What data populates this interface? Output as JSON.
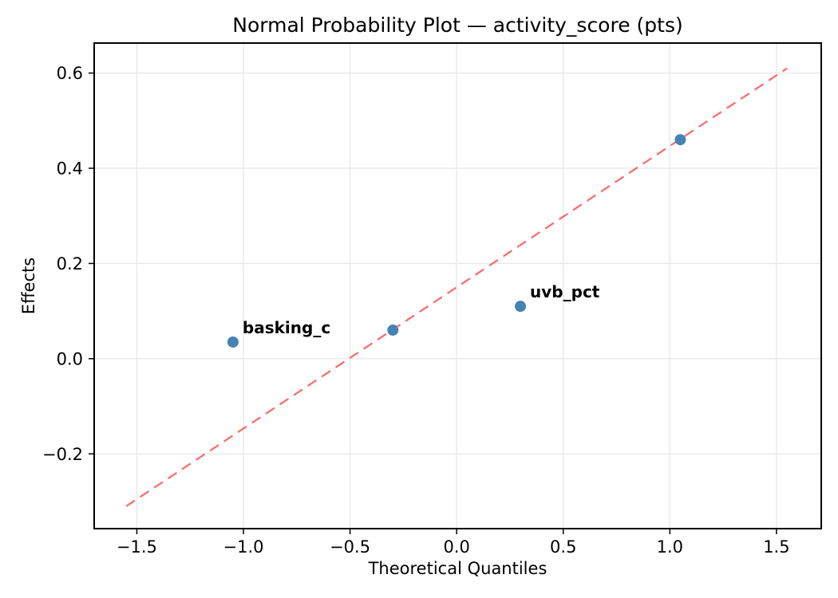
{
  "figure": {
    "title": "Normal Probability Plot — activity_score (pts)",
    "xlabel": "Theoretical Quantiles",
    "ylabel": "Effects"
  },
  "chart_data": {
    "type": "scatter",
    "title": "Normal Probability Plot — activity_score (pts)",
    "xlabel": "Theoretical Quantiles",
    "ylabel": "Effects",
    "xlim": [
      -1.7,
      1.71
    ],
    "ylim": [
      -0.357,
      0.663
    ],
    "grid": true,
    "legend_position": "none",
    "x_ticks": [
      {
        "v": -1.5,
        "label": "−1.5"
      },
      {
        "v": -1.0,
        "label": "−1.0"
      },
      {
        "v": -0.5,
        "label": "−0.5"
      },
      {
        "v": 0.0,
        "label": "0.0"
      },
      {
        "v": 0.5,
        "label": "0.5"
      },
      {
        "v": 1.0,
        "label": "1.0"
      },
      {
        "v": 1.5,
        "label": "1.5"
      }
    ],
    "y_ticks": [
      {
        "v": -0.2,
        "label": "−0.2"
      },
      {
        "v": 0.0,
        "label": "0.0"
      },
      {
        "v": 0.2,
        "label": "0.2"
      },
      {
        "v": 0.4,
        "label": "0.4"
      },
      {
        "v": 0.6,
        "label": "0.6"
      }
    ],
    "series": [
      {
        "name": "effects",
        "marker": "circle",
        "color": "#4682B4",
        "points": [
          {
            "x": -1.049,
            "y": 0.035,
            "annotation": "basking_c"
          },
          {
            "x": -0.299,
            "y": 0.06,
            "annotation": null
          },
          {
            "x": 0.299,
            "y": 0.11,
            "annotation": "uvb_pct"
          },
          {
            "x": 1.049,
            "y": 0.46,
            "annotation": null
          }
        ]
      }
    ],
    "reference_line": {
      "style": "dashed",
      "color": "#F76F6F",
      "from": {
        "x": -1.55,
        "y": -0.31
      },
      "to": {
        "x": 1.55,
        "y": 0.61
      }
    },
    "colors": {
      "annotation": "#FF0000",
      "grid": "#E7E7E7",
      "spine": "#000000",
      "point": "#4682B4",
      "line": "#F76F6F"
    }
  }
}
